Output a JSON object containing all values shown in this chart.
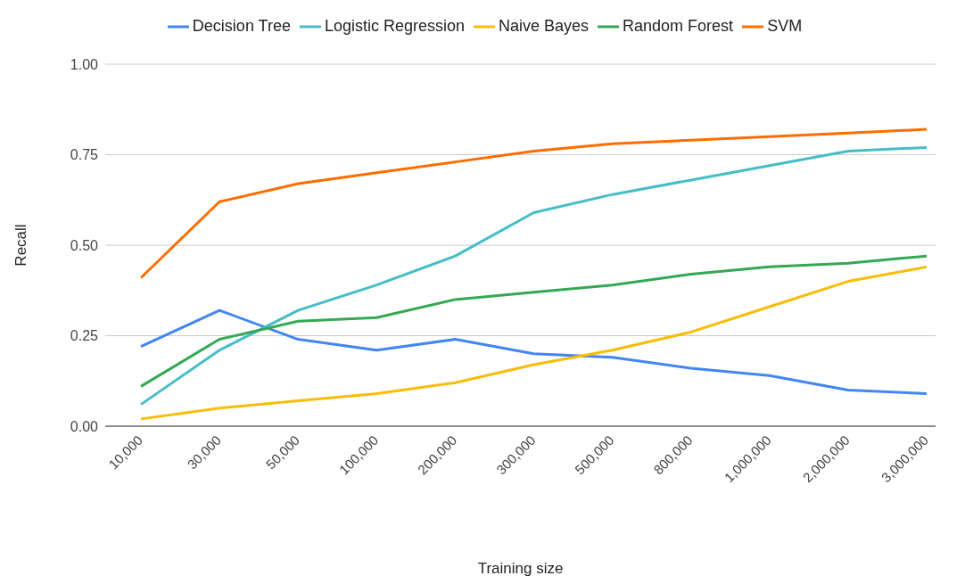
{
  "chart_data": {
    "type": "line",
    "xlabel": "Training size",
    "ylabel": "Recall",
    "categories": [
      "10,000",
      "30,000",
      "50,000",
      "100,000",
      "200,000",
      "300,000",
      "500,000",
      "800,000",
      "1,000,000",
      "2,000,000",
      "3,000,000"
    ],
    "series": [
      {
        "name": "Decision Tree",
        "color": "#4285f4",
        "values": [
          0.22,
          0.32,
          0.24,
          0.21,
          0.24,
          0.2,
          0.19,
          0.16,
          0.14,
          0.1,
          0.09
        ]
      },
      {
        "name": "Logistic Regression",
        "color": "#46bdc6",
        "values": [
          0.06,
          0.21,
          0.32,
          0.39,
          0.47,
          0.59,
          0.64,
          0.68,
          0.72,
          0.76,
          0.77
        ]
      },
      {
        "name": "Naive Bayes",
        "color": "#fbbc04",
        "values": [
          0.02,
          0.05,
          0.07,
          0.09,
          0.12,
          0.17,
          0.21,
          0.26,
          0.33,
          0.4,
          0.44
        ]
      },
      {
        "name": "Random Forest",
        "color": "#34a853",
        "values": [
          0.11,
          0.24,
          0.29,
          0.3,
          0.35,
          0.37,
          0.39,
          0.42,
          0.44,
          0.45,
          0.47
        ]
      },
      {
        "name": "SVM",
        "color": "#ff6d01",
        "values": [
          0.41,
          0.62,
          0.67,
          0.7,
          0.73,
          0.76,
          0.78,
          0.79,
          0.8,
          0.81,
          0.82
        ]
      }
    ],
    "ylim": [
      0,
      1
    ],
    "yticks": [
      {
        "value": 0,
        "label": "0.00"
      },
      {
        "value": 0.25,
        "label": "0.25"
      },
      {
        "value": 0.5,
        "label": "0.50"
      },
      {
        "value": 0.75,
        "label": "0.75"
      },
      {
        "value": 1,
        "label": "1.00"
      }
    ],
    "grid": "y",
    "legend": "top",
    "marker": "none",
    "line_style": "solid"
  }
}
